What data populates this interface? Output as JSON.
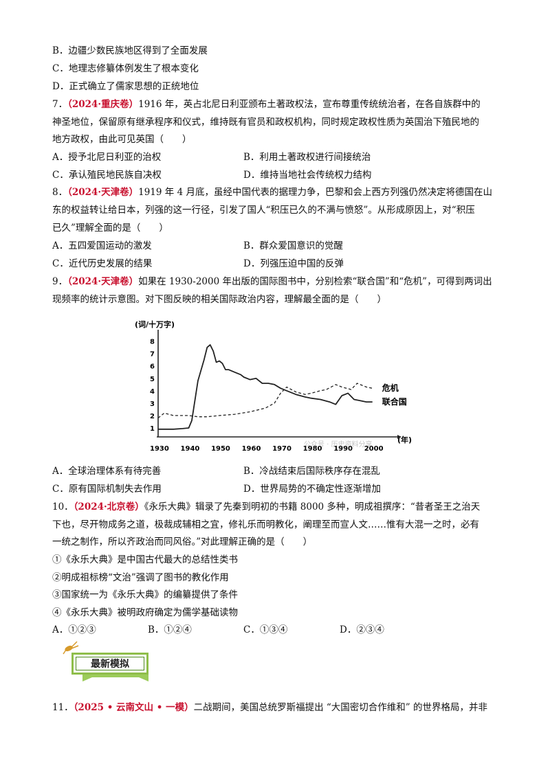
{
  "lines": [
    {
      "id": "l1",
      "text": "B．边疆少数民族地区得到了全面发展"
    },
    {
      "id": "l2",
      "text": "C．地理志修纂体例发生了根本变化"
    },
    {
      "id": "l3",
      "text": "D．正式确立了儒家思想的正统地位"
    },
    {
      "id": "q7a_num",
      "text": "7．"
    },
    {
      "id": "q7a_src",
      "text": "（2024·重庆卷）"
    },
    {
      "id": "q7a_rest",
      "text": "1916 年，英占北尼日利亚颁布土著政权法，宣布尊重传统统治者，在各自族群中的"
    },
    {
      "id": "q7b",
      "text": "神圣地位，保留原有继承程序和仪式，维持既有官员和政权机构，同时规定政权性质为英国治下殖民地的"
    },
    {
      "id": "q7c",
      "text": "地方政权，由此可见英国（　　）"
    }
  ],
  "q7_options": {
    "a": "A．授予北尼日利亚的治权",
    "b": "B．利用土著政权进行间接统治",
    "c": "C．承认殖民地民族自决权",
    "d": "D．维持当地社会传统权力结构"
  },
  "q8": {
    "num": "8．",
    "src": "（2024·天津卷）",
    "l1": "1919 年 4 月底，虽经中国代表的据理力争，巴黎和会上西方列强仍然决定将德国在山",
    "l2": "东的权益转让给日本，列强的这一行径，引发了国人“积压已久的不满与愤怒”。从形成原因上，对“积压",
    "l3": "已久”理解全面的是（　　）"
  },
  "q8_options": {
    "a": "A．五四爱国运动的激发",
    "b": "B．群众爱国意识的觉醒",
    "c": "C．近代历史发展的结果",
    "d": "D．列强压迫中国的反弹"
  },
  "q9": {
    "num": "9．",
    "src": "（2024·天津卷）",
    "l1": "如果在 1930-2000 年出版的国际图书中，分别检索“联合国”和“危机”，可得到两词出",
    "l2": "现频率的统计示意图。对下图反映的相关国际政治内容，理解最全面的是（　　）"
  },
  "chart_data": {
    "type": "line",
    "ylabel": "(词/十万字)",
    "xlabel": "(年)",
    "x_ticks": [
      "1930",
      "1940",
      "1950",
      "1960",
      "1970",
      "1980",
      "1990",
      "2000"
    ],
    "y_ticks": [
      "1",
      "2",
      "3",
      "4",
      "5",
      "6",
      "7",
      "8"
    ],
    "xlim": [
      1930,
      2005
    ],
    "ylim": [
      0.5,
      8.7
    ],
    "watermark": "公众号 · 历史资料分享",
    "series": [
      {
        "name": "危机",
        "style": "dashed",
        "x": [
          1930,
          1932,
          1935,
          1938,
          1940,
          1943,
          1946,
          1950,
          1955,
          1960,
          1965,
          1968,
          1970,
          1972,
          1975,
          1978,
          1980,
          1983,
          1985,
          1988,
          1990,
          1993,
          1995,
          1998,
          2000
        ],
        "y": [
          1.8,
          2.2,
          2.0,
          2.0,
          2.0,
          1.9,
          1.9,
          2.0,
          2.1,
          2.3,
          2.6,
          3.0,
          3.8,
          4.3,
          3.9,
          3.7,
          3.8,
          4.0,
          4.1,
          4.5,
          4.3,
          4.1,
          4.6,
          4.3,
          4.2
        ]
      },
      {
        "name": "联合国",
        "style": "solid",
        "x": [
          1930,
          1935,
          1938,
          1940,
          1941,
          1943,
          1945,
          1946,
          1947,
          1948,
          1949,
          1950,
          1951,
          1952,
          1953,
          1955,
          1957,
          1958,
          1960,
          1962,
          1964,
          1966,
          1968,
          1970,
          1972,
          1975,
          1978,
          1980,
          1983,
          1986,
          1988,
          1990,
          1992,
          1994,
          1996,
          1998,
          2000
        ],
        "y": [
          0.9,
          0.9,
          0.95,
          1.0,
          1.6,
          4.8,
          6.5,
          7.5,
          7.7,
          7.2,
          6.3,
          6.4,
          6.2,
          5.7,
          5.7,
          5.5,
          5.3,
          5.1,
          4.9,
          5.0,
          4.6,
          4.6,
          4.5,
          4.2,
          4.0,
          3.7,
          3.5,
          3.4,
          3.3,
          3.1,
          2.9,
          3.6,
          3.8,
          3.3,
          3.2,
          3.1,
          3.1
        ]
      }
    ]
  },
  "q9_options": {
    "a": "A．全球治理体系有待完善",
    "b": "B．冷战结束后国际秩序存在混乱",
    "c": "C．原有国际机制失去作用",
    "d": "D．世界局势的不确定性逐渐增加"
  },
  "q10": {
    "num": "10．",
    "src": "（2024·北京卷）",
    "l1": "《永乐大典》辑录了先秦到明初的书籍 8000 多种，明成祖撰序：“昔者圣王之治天",
    "l2": "下也，尽开物成务之道，极裁成辅相之宜，修礼乐而明教化，阐理至而宣人文……惟有大混一之时，必有",
    "l3": "一统之制作，所以齐政治而同风俗。”对此理解正确的是（　　）",
    "s1": "①《永乐大典》是中国古代最大的总结性类书",
    "s2": "②明成祖标榜“文治”强调了图书的教化作用",
    "s3": "③国家统一为《永乐大典》的编纂提供了条件",
    "s4": "④《永乐大典》被明政府确定为儒学基础读物",
    "oa": "A．①②③",
    "ob": "B．①②④",
    "oc": "C．①③④",
    "od": "D．②③④"
  },
  "banner_title": "最新模拟",
  "q11": {
    "num": "11．",
    "src": "（2025 • 云南文山 • 一模）",
    "l1": "二战期间，美国总统罗斯福提出 “大国密切合作维和” 的世界格局，并非"
  }
}
